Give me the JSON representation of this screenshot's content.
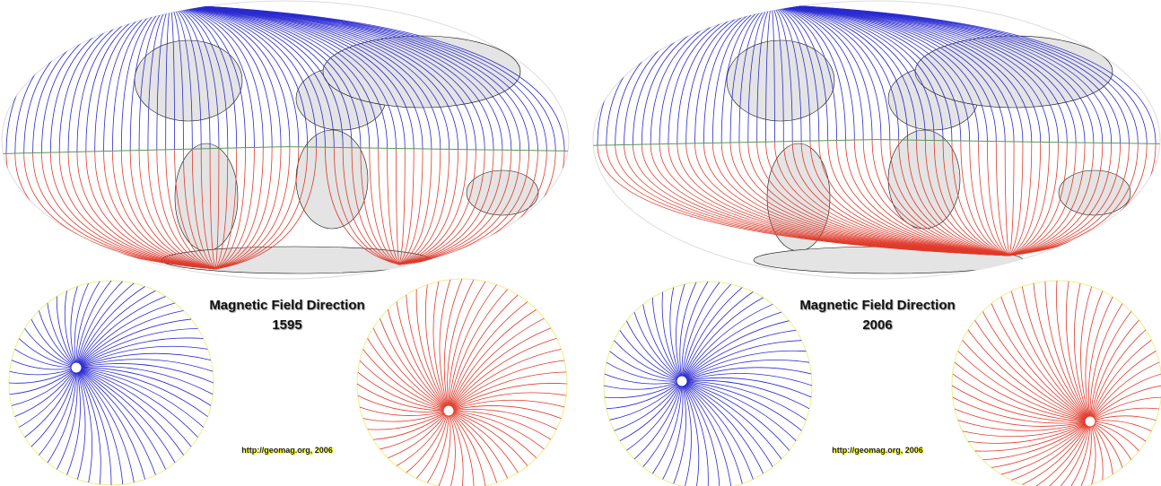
{
  "panels": [
    {
      "title": "Magnetic Field Direction",
      "year": "1595",
      "credit": "http://geomag.org, 2006"
    },
    {
      "title": "Magnetic Field Direction",
      "year": "2006",
      "credit": "http://geomag.org, 2006"
    }
  ],
  "colors": {
    "north": "#2a2ad0",
    "south": "#e03a2a",
    "equator": "#5a9a5a",
    "land": "#e4e4e4",
    "coast": "#111111"
  }
}
